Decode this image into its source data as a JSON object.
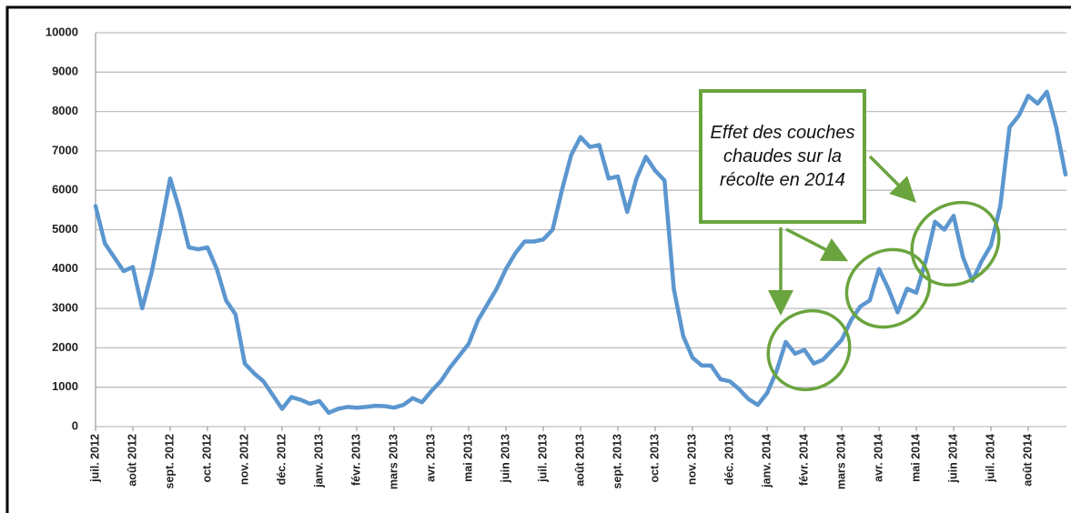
{
  "chart_data": {
    "type": "line",
    "categories": [
      "juil. 2012",
      null,
      null,
      null,
      "août 2012",
      null,
      null,
      null,
      "sept. 2012",
      null,
      null,
      null,
      "oct. 2012",
      null,
      null,
      null,
      "nov. 2012",
      null,
      null,
      null,
      "déc. 2012",
      null,
      null,
      null,
      "janv. 2013",
      null,
      null,
      null,
      "févr. 2013",
      null,
      null,
      null,
      "mars 2013",
      null,
      null,
      null,
      "avr. 2013",
      null,
      null,
      null,
      "mai 2013",
      null,
      null,
      null,
      "juin 2013",
      null,
      null,
      null,
      "juil. 2013",
      null,
      null,
      null,
      "août 2013",
      null,
      null,
      null,
      "sept. 2013",
      null,
      null,
      null,
      "oct. 2013",
      null,
      null,
      null,
      "nov. 2013",
      null,
      null,
      null,
      "déc. 2013",
      null,
      null,
      null,
      "janv. 2014",
      null,
      null,
      null,
      "févr. 2014",
      null,
      null,
      null,
      "mars 2014",
      null,
      null,
      null,
      "avr. 2014",
      null,
      null,
      null,
      "mai 2014",
      null,
      null,
      null,
      "juin 2014",
      null,
      null,
      null,
      "juil. 2014",
      null,
      null,
      null,
      "août 2014",
      null,
      null,
      null,
      null
    ],
    "values": [
      5600,
      4650,
      4300,
      3950,
      4050,
      3000,
      3900,
      5050,
      6300,
      5500,
      4550,
      4500,
      4550,
      4000,
      3200,
      2850,
      1600,
      1350,
      1150,
      800,
      450,
      750,
      680,
      580,
      650,
      350,
      450,
      500,
      480,
      500,
      530,
      520,
      480,
      550,
      720,
      620,
      900,
      1150,
      1500,
      1800,
      2100,
      2700,
      3100,
      3500,
      4000,
      4400,
      4700,
      4700,
      4750,
      5000,
      6000,
      6900,
      7350,
      7100,
      7150,
      6300,
      6350,
      5450,
      6300,
      6850,
      6500,
      6250,
      3500,
      2300,
      1750,
      1550,
      1550,
      1200,
      1150,
      950,
      700,
      550,
      850,
      1400,
      2150,
      1850,
      1950,
      1600,
      1700,
      1950,
      2200,
      2700,
      3050,
      3200,
      4000,
      3500,
      2900,
      3500,
      3400,
      4200,
      5200,
      5000,
      5350,
      4300,
      3700,
      4200,
      4600,
      5600,
      7600,
      7900,
      8400,
      8200,
      8500,
      7600,
      6400
    ],
    "color": "#5b96cf",
    "ylim": [
      0,
      10000
    ],
    "yticks": [
      0,
      1000,
      2000,
      3000,
      4000,
      5000,
      6000,
      7000,
      8000,
      9000,
      10000
    ],
    "grid": true,
    "annotation": "Effet des couches chaudes sur la récolte en 2014"
  }
}
